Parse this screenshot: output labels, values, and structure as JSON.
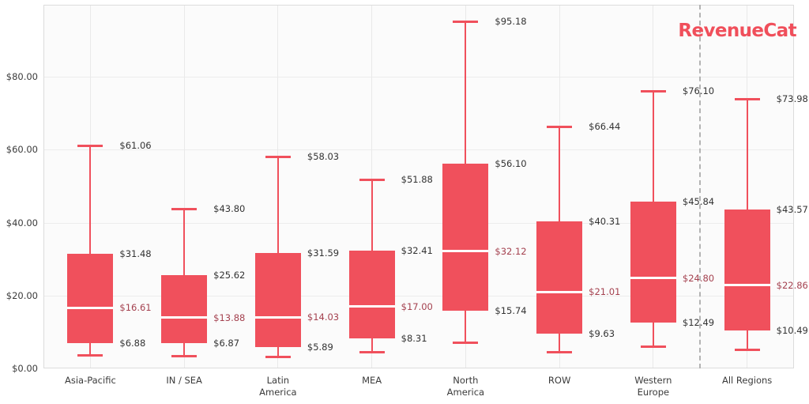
{
  "logo": {
    "text": "RevenueCat",
    "color": "#f04f5b"
  },
  "chart_data": {
    "type": "box",
    "title": "",
    "xlabel": "",
    "ylabel": "",
    "ylim": [
      0,
      99.7
    ],
    "grid": true,
    "legend": "none",
    "divider_before_category": "All Regions",
    "y_ticks": [
      {
        "label": "$0.00",
        "value": 0
      },
      {
        "label": "$20.00",
        "value": 20
      },
      {
        "label": "$40.00",
        "value": 40
      },
      {
        "label": "$60.00",
        "value": 60
      },
      {
        "label": "$80.00",
        "value": 80
      }
    ],
    "colors": {
      "box": "#f0505c",
      "whisker": "#f0505c",
      "median_line": "#ffffff",
      "value_label": "#333333",
      "median_label": "#a4414f"
    },
    "series": [
      {
        "category": "Asia-Pacific",
        "label_lines": [
          "Asia-Pacific"
        ],
        "low": 3.7,
        "q1": 6.88,
        "median": 16.61,
        "q3": 31.48,
        "high": 61.06,
        "labels": {
          "high": "$61.06",
          "q3": "$31.48",
          "median": "$16.61",
          "q1": "$6.88"
        }
      },
      {
        "category": "IN / SEA",
        "label_lines": [
          "IN / SEA"
        ],
        "low": 3.4,
        "q1": 6.87,
        "median": 13.88,
        "q3": 25.62,
        "high": 43.8,
        "labels": {
          "high": "$43.80",
          "q3": "$25.62",
          "median": "$13.88",
          "q1": "$6.87"
        }
      },
      {
        "category": "Latin America",
        "label_lines": [
          "Latin",
          "America"
        ],
        "low": 3.2,
        "q1": 5.89,
        "median": 14.03,
        "q3": 31.59,
        "high": 58.03,
        "labels": {
          "high": "$58.03",
          "q3": "$31.59",
          "median": "$14.03",
          "q1": "$5.89"
        }
      },
      {
        "category": "MEA",
        "label_lines": [
          "MEA"
        ],
        "low": 4.6,
        "q1": 8.31,
        "median": 17.0,
        "q3": 32.41,
        "high": 51.88,
        "labels": {
          "high": "$51.88",
          "q3": "$32.41",
          "median": "$17.00",
          "q1": "$8.31"
        }
      },
      {
        "category": "North America",
        "label_lines": [
          "North",
          "America"
        ],
        "low": 7.2,
        "q1": 15.74,
        "median": 32.12,
        "q3": 56.1,
        "high": 95.18,
        "labels": {
          "high": "$95.18",
          "q3": "$56.10",
          "median": "$32.12",
          "q1": "$15.74"
        }
      },
      {
        "category": "ROW",
        "label_lines": [
          "ROW"
        ],
        "low": 4.6,
        "q1": 9.63,
        "median": 21.01,
        "q3": 40.31,
        "high": 66.44,
        "labels": {
          "high": "$66.44",
          "q3": "$40.31",
          "median": "$21.01",
          "q1": "$9.63"
        }
      },
      {
        "category": "Western Europe",
        "label_lines": [
          "Western",
          "Europe"
        ],
        "low": 6.1,
        "q1": 12.49,
        "median": 24.8,
        "q3": 45.84,
        "high": 76.1,
        "labels": {
          "high": "$76.10",
          "q3": "$45.84",
          "median": "$24.80",
          "q1": "$12.49"
        }
      },
      {
        "category": "All Regions",
        "label_lines": [
          "All Regions"
        ],
        "low": 5.2,
        "q1": 10.49,
        "median": 22.86,
        "q3": 43.57,
        "high": 73.98,
        "labels": {
          "high": "$73.98",
          "q3": "$43.57",
          "median": "$22.86",
          "q1": "$10.49"
        }
      }
    ]
  }
}
